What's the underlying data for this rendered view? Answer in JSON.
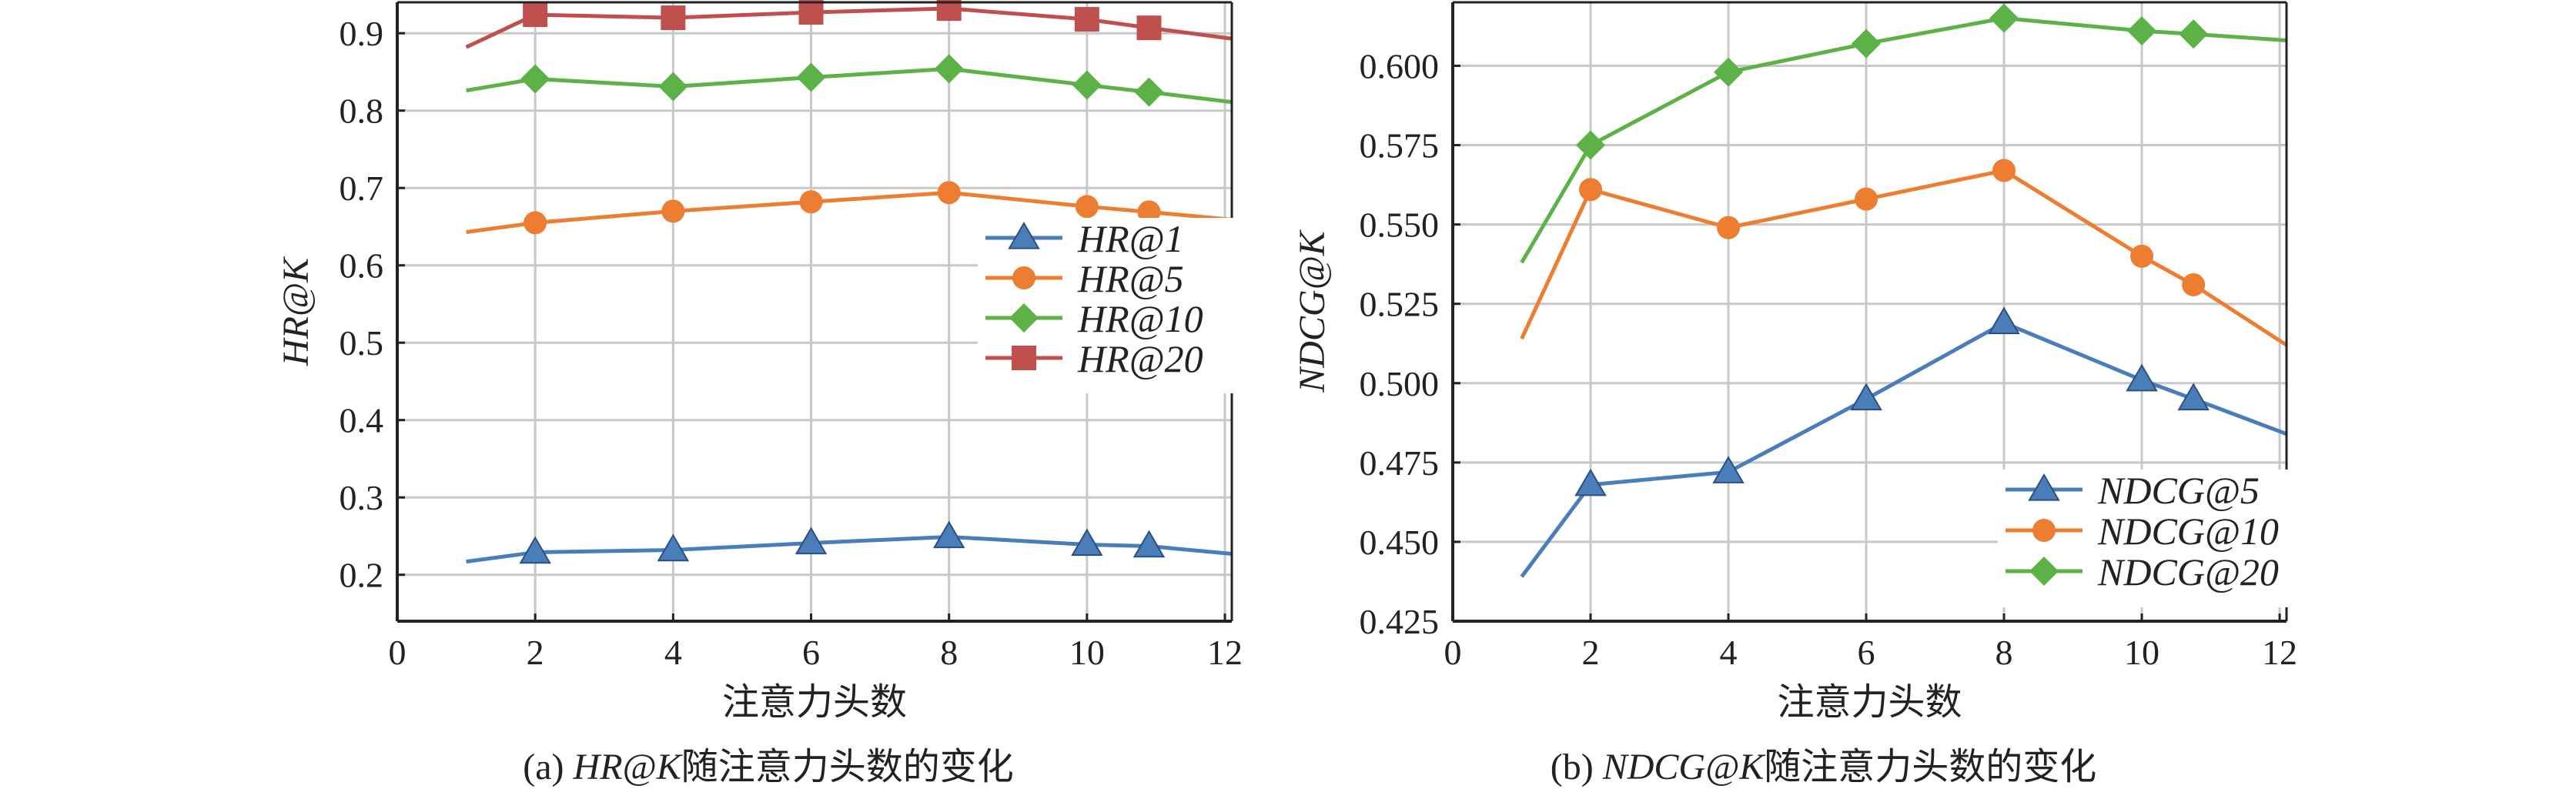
{
  "chart_data": [
    {
      "type": "line",
      "caption": {
        "prefix": "(a)  ",
        "metric": "HR@K",
        "suffix": "随注意力头数的变化"
      },
      "xlabel": "注意力头数",
      "ylabel": "HR@K",
      "xlim": [
        0,
        12.1
      ],
      "ylim": [
        0.14,
        0.94
      ],
      "xticks": [
        0,
        2,
        4,
        6,
        8,
        10,
        12
      ],
      "yticks": [
        0.2,
        0.3,
        0.4,
        0.5,
        0.6,
        0.7,
        0.8,
        0.9
      ],
      "ytick_labels": [
        "0.2",
        "0.3",
        "0.4",
        "0.5",
        "0.6",
        "0.7",
        "0.8",
        "0.9"
      ],
      "grid": true,
      "legend_position": "center-right",
      "series": [
        {
          "name": "HR@1",
          "color": "#4a7ebb",
          "marker": "triangle",
          "x": [
            1,
            2,
            4,
            6,
            8,
            10,
            10.9,
            12.1
          ],
          "y": [
            0.217,
            0.229,
            0.232,
            0.241,
            0.249,
            0.239,
            0.237,
            0.227
          ],
          "markers": [
            false,
            true,
            true,
            true,
            true,
            true,
            true,
            false
          ]
        },
        {
          "name": "HR@5",
          "color": "#ed7d31",
          "marker": "circle",
          "x": [
            1,
            2,
            4,
            6,
            8,
            10,
            10.9,
            12.1
          ],
          "y": [
            0.643,
            0.655,
            0.67,
            0.682,
            0.694,
            0.676,
            0.669,
            0.659
          ],
          "markers": [
            false,
            true,
            true,
            true,
            true,
            true,
            true,
            false
          ]
        },
        {
          "name": "HR@10",
          "color": "#5cb246",
          "marker": "diamond",
          "x": [
            1,
            2,
            4,
            6,
            8,
            10,
            10.9,
            12.1
          ],
          "y": [
            0.826,
            0.841,
            0.831,
            0.843,
            0.854,
            0.833,
            0.824,
            0.811
          ],
          "markers": [
            false,
            true,
            true,
            true,
            true,
            true,
            true,
            false
          ]
        },
        {
          "name": "HR@20",
          "color": "#c0504d",
          "marker": "square",
          "x": [
            1,
            2,
            4,
            6,
            8,
            10,
            10.9,
            12.1
          ],
          "y": [
            0.882,
            0.924,
            0.92,
            0.927,
            0.932,
            0.918,
            0.907,
            0.893
          ],
          "markers": [
            false,
            true,
            true,
            true,
            true,
            true,
            true,
            false
          ]
        }
      ]
    },
    {
      "type": "line",
      "caption": {
        "prefix": "(b)  ",
        "metric": "NDCG@K",
        "suffix": "随注意力头数的变化"
      },
      "xlabel": "注意力头数",
      "ylabel": "NDCG@K",
      "xlim": [
        0,
        12.1
      ],
      "ylim": [
        0.425,
        0.62
      ],
      "xticks": [
        0,
        2,
        4,
        6,
        8,
        10,
        12
      ],
      "yticks": [
        0.425,
        0.45,
        0.475,
        0.5,
        0.525,
        0.55,
        0.575,
        0.6
      ],
      "ytick_labels": [
        "0.425",
        "0.450",
        "0.475",
        "0.500",
        "0.525",
        "0.550",
        "0.575",
        "0.600"
      ],
      "grid": true,
      "legend_position": "lower-right",
      "series": [
        {
          "name": "NDCG@5",
          "color": "#4a7ebb",
          "marker": "triangle",
          "x": [
            1,
            2,
            4,
            6,
            8,
            10,
            10.75,
            12.1
          ],
          "y": [
            0.439,
            0.468,
            0.472,
            0.495,
            0.519,
            0.501,
            0.495,
            0.484
          ],
          "markers": [
            false,
            true,
            true,
            true,
            true,
            true,
            true,
            false
          ]
        },
        {
          "name": "NDCG@10",
          "color": "#ed7d31",
          "marker": "circle",
          "x": [
            1,
            2,
            4,
            6,
            8,
            10,
            10.75,
            12.1
          ],
          "y": [
            0.514,
            0.561,
            0.549,
            0.558,
            0.567,
            0.54,
            0.531,
            0.512
          ],
          "markers": [
            false,
            true,
            true,
            true,
            true,
            true,
            true,
            false
          ]
        },
        {
          "name": "NDCG@20",
          "color": "#5cb246",
          "marker": "diamond",
          "x": [
            1,
            2,
            4,
            6,
            8,
            10,
            10.75,
            12.1
          ],
          "y": [
            0.538,
            0.575,
            0.598,
            0.607,
            0.615,
            0.611,
            0.61,
            0.608
          ],
          "markers": [
            false,
            true,
            true,
            true,
            true,
            true,
            true,
            false
          ]
        }
      ]
    }
  ]
}
